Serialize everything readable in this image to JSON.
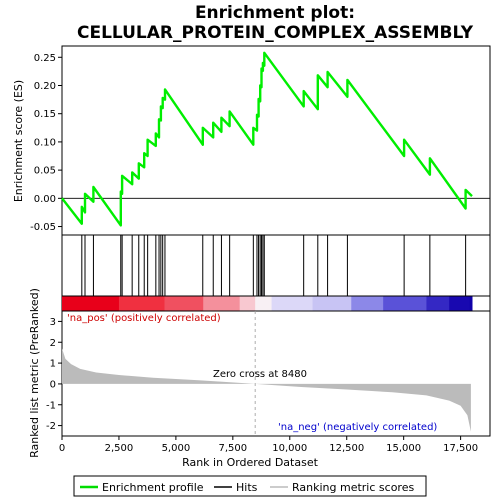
{
  "chart_data": {
    "type": "line",
    "title_line1": "Enrichment plot:",
    "title_line2": "CELLULAR_PROTEIN_COMPLEX_ASSEMBLY",
    "es_panel": {
      "ylabel": "Enrichment score (ES)",
      "ylim": [
        -0.065,
        0.27
      ],
      "yticks": [
        -0.05,
        0.0,
        0.05,
        0.1,
        0.15,
        0.2,
        0.25
      ],
      "ytick_labels": [
        "-0.05",
        "0.00",
        "0.05",
        "0.10",
        "0.15",
        "0.20",
        "0.25"
      ]
    },
    "rank_panel": {
      "ylabel": "Ranked list metric (PreRanked)",
      "ylim": [
        -2.5,
        3.5
      ],
      "yticks": [
        -2,
        -1,
        0,
        1,
        2,
        3
      ],
      "ytick_labels": [
        "-2",
        "-1",
        "0",
        "1",
        "2",
        "3"
      ],
      "metric_profile": [
        [
          0,
          1.7
        ],
        [
          150,
          1.2
        ],
        [
          400,
          0.95
        ],
        [
          800,
          0.72
        ],
        [
          1500,
          0.55
        ],
        [
          2500,
          0.43
        ],
        [
          4000,
          0.3
        ],
        [
          6000,
          0.18
        ],
        [
          8480,
          0.0
        ],
        [
          10500,
          -0.15
        ],
        [
          12500,
          -0.27
        ],
        [
          14500,
          -0.4
        ],
        [
          16000,
          -0.55
        ],
        [
          17000,
          -0.8
        ],
        [
          17500,
          -1.05
        ],
        [
          17800,
          -1.5
        ],
        [
          17950,
          -2.3
        ]
      ]
    },
    "xlabel": "Rank in Dataset",
    "xlabel_full": "Rank in Ordered Dataset",
    "xlim": [
      0,
      18000
    ],
    "xticks": [
      0,
      2500,
      5000,
      7500,
      10000,
      12500,
      15000,
      17500
    ],
    "xtick_labels": [
      "0",
      "2,500",
      "5,000",
      "7,500",
      "10,000",
      "12,500",
      "15,000",
      "17,500"
    ],
    "zero_cross_label": "Zero cross at 8480",
    "zero_cross": 8480,
    "pos_label": "'na_pos' (positively correlated)",
    "neg_label": "'na_neg' (negatively correlated)",
    "hits": [
      870,
      1010,
      1380,
      2580,
      2640,
      3080,
      3370,
      3610,
      3760,
      4120,
      4260,
      4340,
      4420,
      4520,
      6180,
      6640,
      7000,
      7360,
      8400,
      8560,
      8630,
      8700,
      8760,
      8820,
      8880,
      10610,
      11230,
      11660,
      12530,
      15020,
      16150,
      17720
    ],
    "es_points": [
      [
        0,
        0.0
      ],
      [
        870,
        -0.045
      ],
      [
        870,
        -0.015
      ],
      [
        1010,
        -0.025
      ],
      [
        1010,
        0.008
      ],
      [
        1380,
        -0.006
      ],
      [
        1380,
        0.02
      ],
      [
        2580,
        -0.048
      ],
      [
        2580,
        0.012
      ],
      [
        2640,
        0.008
      ],
      [
        2640,
        0.04
      ],
      [
        3080,
        0.025
      ],
      [
        3080,
        0.046
      ],
      [
        3370,
        0.035
      ],
      [
        3370,
        0.062
      ],
      [
        3610,
        0.055
      ],
      [
        3610,
        0.08
      ],
      [
        3760,
        0.075
      ],
      [
        3760,
        0.104
      ],
      [
        4120,
        0.093
      ],
      [
        4120,
        0.115
      ],
      [
        4260,
        0.108
      ],
      [
        4260,
        0.14
      ],
      [
        4340,
        0.138
      ],
      [
        4340,
        0.163
      ],
      [
        4420,
        0.16
      ],
      [
        4420,
        0.178
      ],
      [
        4520,
        0.175
      ],
      [
        4520,
        0.193
      ],
      [
        6180,
        0.095
      ],
      [
        6180,
        0.125
      ],
      [
        6640,
        0.108
      ],
      [
        6640,
        0.134
      ],
      [
        7000,
        0.118
      ],
      [
        7000,
        0.143
      ],
      [
        7360,
        0.128
      ],
      [
        7360,
        0.154
      ],
      [
        8400,
        0.095
      ],
      [
        8400,
        0.125
      ],
      [
        8560,
        0.12
      ],
      [
        8560,
        0.148
      ],
      [
        8630,
        0.145
      ],
      [
        8630,
        0.176
      ],
      [
        8700,
        0.172
      ],
      [
        8700,
        0.2
      ],
      [
        8760,
        0.197
      ],
      [
        8760,
        0.23
      ],
      [
        8820,
        0.226
      ],
      [
        8820,
        0.24
      ],
      [
        8880,
        0.235
      ],
      [
        8880,
        0.258
      ],
      [
        10610,
        0.163
      ],
      [
        10610,
        0.19
      ],
      [
        11230,
        0.158
      ],
      [
        11230,
        0.218
      ],
      [
        11660,
        0.197
      ],
      [
        11660,
        0.224
      ],
      [
        12530,
        0.18
      ],
      [
        12530,
        0.21
      ],
      [
        15020,
        0.075
      ],
      [
        15020,
        0.104
      ],
      [
        16150,
        0.042
      ],
      [
        16150,
        0.071
      ],
      [
        17720,
        -0.018
      ],
      [
        17720,
        0.015
      ],
      [
        18000,
        0.004
      ]
    ],
    "colorbar_stops": [
      [
        0,
        "#e8001a"
      ],
      [
        2500,
        "#f03040"
      ],
      [
        4500,
        "#f05060"
      ],
      [
        6200,
        "#f4909c"
      ],
      [
        7800,
        "#f8c8d0"
      ],
      [
        8480,
        "#f8f0f4"
      ],
      [
        9200,
        "#dcd8f8"
      ],
      [
        11000,
        "#c8c4f4"
      ],
      [
        12700,
        "#8c88e8"
      ],
      [
        14100,
        "#5a52d8"
      ],
      [
        16000,
        "#3428c4"
      ],
      [
        17000,
        "#1808b0"
      ],
      [
        17900,
        "#1000a8"
      ]
    ],
    "legend": [
      {
        "label": "Enrichment profile",
        "color": "#00dd00",
        "style": "line"
      },
      {
        "label": "Hits",
        "color": "#000000",
        "style": "line"
      },
      {
        "label": "Ranking metric scores",
        "color": "#bbbbbb",
        "style": "line"
      }
    ],
    "colors": {
      "es_line": "#00ee00",
      "hits": "#000000",
      "metric_fill": "#bbbbbb",
      "zero_line": "#999999"
    }
  }
}
